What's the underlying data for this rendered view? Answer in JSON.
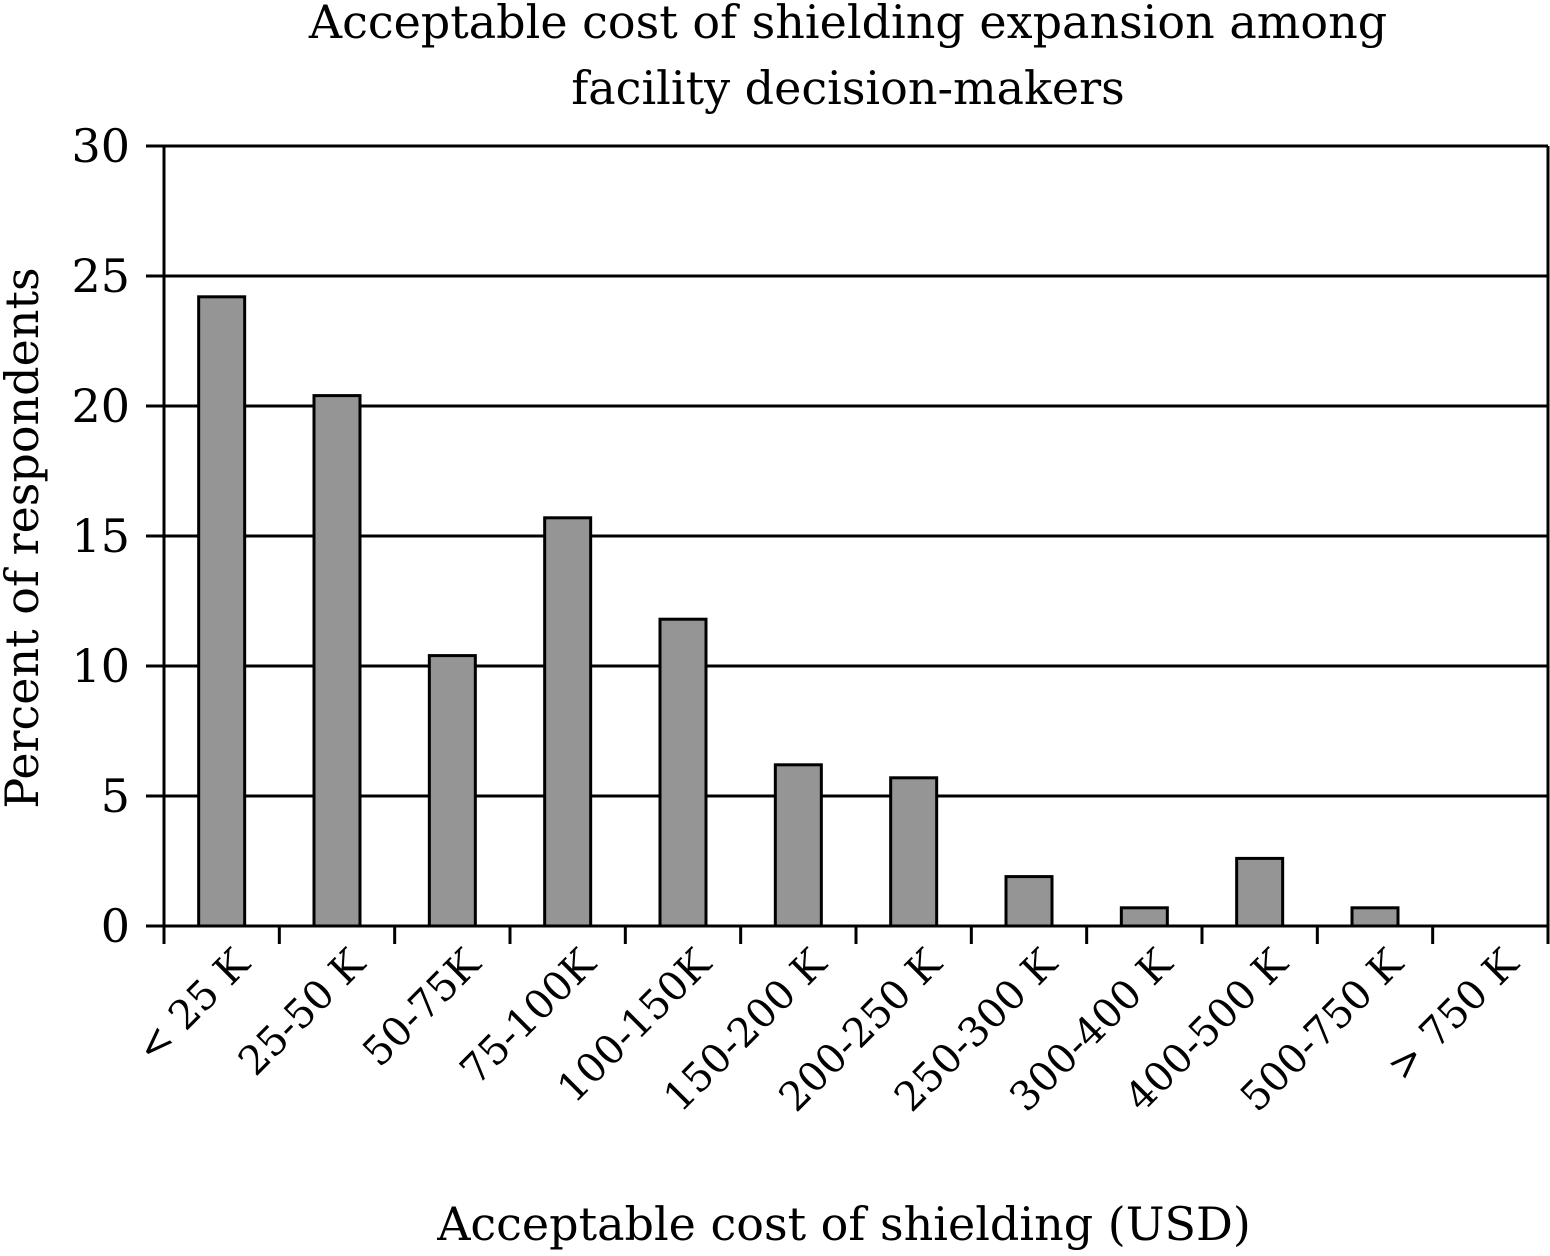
{
  "chart_data": {
    "type": "bar",
    "title": "Acceptable cost of shielding expansion among facility decision-makers",
    "title_lines": [
      "Acceptable cost of shielding expansion among",
      "facility decision-makers"
    ],
    "xlabel": "Acceptable cost of shielding (USD)",
    "ylabel": "Percent of respondents",
    "categories": [
      "< 25 K",
      "25-50 K",
      "50-75K",
      "75-100K",
      "100-150K",
      "150-200 K",
      "200-250 K",
      "250-300 K",
      "300-400 K",
      "400-500 K",
      "500-750 K",
      "> 750 K"
    ],
    "values": [
      24.2,
      20.4,
      10.4,
      15.7,
      11.8,
      6.2,
      5.7,
      1.9,
      0.7,
      2.6,
      0.7,
      0
    ],
    "ylim": [
      0,
      30
    ],
    "yticks": [
      0,
      5,
      10,
      15,
      20,
      25,
      30
    ],
    "grid": true,
    "legend": "none",
    "colors": {
      "bar_fill": "#959595",
      "bar_stroke": "#000000"
    }
  }
}
